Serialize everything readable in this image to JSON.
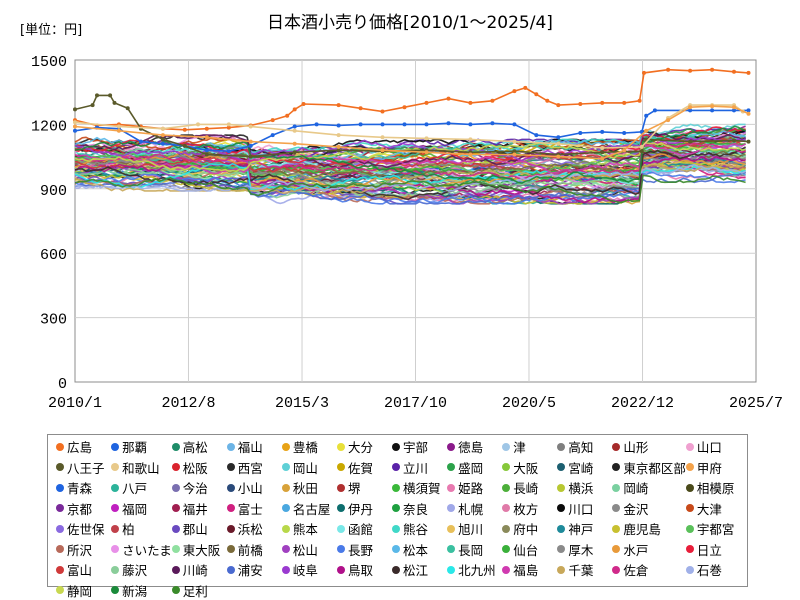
{
  "chart_data": {
    "type": "line",
    "title": "日本酒小売り価格[2010/1～2025/4]",
    "unit_label": "[単位：円]",
    "xlabel": "",
    "ylabel": "",
    "x_range": [
      2010.0,
      2025.5
    ],
    "ylim": [
      0,
      1500
    ],
    "y_ticks": [
      0,
      300,
      600,
      900,
      1200,
      1500
    ],
    "x_ticks": [
      {
        "label": "2010/1",
        "value": 2010.0
      },
      {
        "label": "2012/8",
        "value": 2012.583
      },
      {
        "label": "2015/3",
        "value": 2015.167
      },
      {
        "label": "2017/10",
        "value": 2017.75
      },
      {
        "label": "2020/5",
        "value": 2020.333
      },
      {
        "label": "2022/12",
        "value": 2022.917
      },
      {
        "label": "2025/7",
        "value": 2025.5
      }
    ],
    "grid": true,
    "legend_position": "bottom",
    "highlighted_series": [
      {
        "name": "広島",
        "color": "#f26f21",
        "points": [
          [
            2010.0,
            1220
          ],
          [
            2010.5,
            1195
          ],
          [
            2011.0,
            1200
          ],
          [
            2011.5,
            1190
          ],
          [
            2012.0,
            1180
          ],
          [
            2012.5,
            1175
          ],
          [
            2013.0,
            1180
          ],
          [
            2013.5,
            1185
          ],
          [
            2014.0,
            1195
          ],
          [
            2014.5,
            1220
          ],
          [
            2014.83,
            1240
          ],
          [
            2015.0,
            1270
          ],
          [
            2015.2,
            1295
          ],
          [
            2016.0,
            1290
          ],
          [
            2016.5,
            1275
          ],
          [
            2017.0,
            1260
          ],
          [
            2017.5,
            1280
          ],
          [
            2018.0,
            1300
          ],
          [
            2018.5,
            1320
          ],
          [
            2019.0,
            1300
          ],
          [
            2019.5,
            1310
          ],
          [
            2020.0,
            1355
          ],
          [
            2020.25,
            1370
          ],
          [
            2020.5,
            1340
          ],
          [
            2020.75,
            1310
          ],
          [
            2021.0,
            1290
          ],
          [
            2021.5,
            1295
          ],
          [
            2022.0,
            1300
          ],
          [
            2022.5,
            1300
          ],
          [
            2022.85,
            1310
          ],
          [
            2022.95,
            1440
          ],
          [
            2023.5,
            1455
          ],
          [
            2024.0,
            1450
          ],
          [
            2024.5,
            1455
          ],
          [
            2025.0,
            1445
          ],
          [
            2025.33,
            1440
          ]
        ]
      },
      {
        "name": "那覇",
        "color": "#1f64e0",
        "points": [
          [
            2010.0,
            1170
          ],
          [
            2010.5,
            1185
          ],
          [
            2011.0,
            1180
          ],
          [
            2011.5,
            1120
          ],
          [
            2012.0,
            1110
          ],
          [
            2012.5,
            1100
          ],
          [
            2013.0,
            1080
          ],
          [
            2013.5,
            1075
          ],
          [
            2014.0,
            1100
          ],
          [
            2014.5,
            1150
          ],
          [
            2015.0,
            1190
          ],
          [
            2015.5,
            1200
          ],
          [
            2016.0,
            1195
          ],
          [
            2016.5,
            1200
          ],
          [
            2017.0,
            1200
          ],
          [
            2017.5,
            1200
          ],
          [
            2018.0,
            1200
          ],
          [
            2018.5,
            1205
          ],
          [
            2019.0,
            1200
          ],
          [
            2019.5,
            1205
          ],
          [
            2020.0,
            1200
          ],
          [
            2020.5,
            1150
          ],
          [
            2021.0,
            1140
          ],
          [
            2021.5,
            1160
          ],
          [
            2022.0,
            1165
          ],
          [
            2022.5,
            1160
          ],
          [
            2022.9,
            1165
          ],
          [
            2023.0,
            1240
          ],
          [
            2023.2,
            1265
          ],
          [
            2024.0,
            1265
          ],
          [
            2024.5,
            1265
          ],
          [
            2025.0,
            1265
          ],
          [
            2025.33,
            1265
          ]
        ]
      },
      {
        "name": "八王子",
        "color": "#5a5a2a",
        "points": [
          [
            2010.0,
            1270
          ],
          [
            2010.4,
            1290
          ],
          [
            2010.5,
            1335
          ],
          [
            2010.8,
            1335
          ],
          [
            2010.9,
            1300
          ],
          [
            2011.2,
            1275
          ],
          [
            2011.5,
            1180
          ],
          [
            2012.0,
            1130
          ],
          [
            2012.5,
            1100
          ],
          [
            2013.0,
            1060
          ],
          [
            2014.0,
            1050
          ],
          [
            2015.0,
            1070
          ],
          [
            2016.0,
            1080
          ],
          [
            2017.0,
            1075
          ],
          [
            2018.0,
            1080
          ],
          [
            2019.0,
            1070
          ],
          [
            2020.0,
            1075
          ],
          [
            2021.0,
            1060
          ],
          [
            2022.0,
            1070
          ],
          [
            2022.9,
            1075
          ],
          [
            2023.0,
            1130
          ],
          [
            2024.0,
            1120
          ],
          [
            2025.0,
            1125
          ],
          [
            2025.33,
            1120
          ]
        ]
      },
      {
        "name": "和歌山",
        "color": "#e8c98a",
        "points": [
          [
            2010.0,
            1210
          ],
          [
            2011.0,
            1190
          ],
          [
            2012.0,
            1180
          ],
          [
            2012.8,
            1200
          ],
          [
            2013.5,
            1200
          ],
          [
            2014.0,
            1190
          ],
          [
            2015.0,
            1170
          ],
          [
            2016.0,
            1150
          ],
          [
            2017.0,
            1140
          ],
          [
            2018.0,
            1135
          ],
          [
            2019.0,
            1130
          ],
          [
            2020.0,
            1120
          ],
          [
            2021.0,
            1110
          ],
          [
            2022.0,
            1090
          ],
          [
            2022.9,
            1095
          ],
          [
            2023.5,
            1230
          ],
          [
            2024.0,
            1290
          ],
          [
            2024.5,
            1290
          ],
          [
            2025.0,
            1290
          ],
          [
            2025.2,
            1260
          ]
        ]
      },
      {
        "name": "甲府",
        "color": "#f4a24a",
        "points": [
          [
            2010.0,
            1190
          ],
          [
            2011.0,
            1170
          ],
          [
            2012.0,
            1150
          ],
          [
            2013.0,
            1140
          ],
          [
            2014.0,
            1120
          ],
          [
            2015.0,
            1110
          ],
          [
            2016.0,
            1095
          ],
          [
            2017.0,
            1080
          ],
          [
            2018.0,
            1070
          ],
          [
            2019.0,
            1060
          ],
          [
            2020.0,
            1060
          ],
          [
            2021.0,
            1050
          ],
          [
            2022.0,
            1040
          ],
          [
            2022.5,
            1080
          ],
          [
            2023.0,
            1170
          ],
          [
            2023.5,
            1220
          ],
          [
            2024.0,
            1280
          ],
          [
            2024.5,
            1285
          ],
          [
            2025.0,
            1280
          ],
          [
            2025.33,
            1250
          ]
        ]
      }
    ],
    "band": {
      "note": "Remaining series form a dense band between roughly 830 and 1150 yen",
      "eras": [
        {
          "start": 2010.0,
          "end": 2014.0,
          "min": 890,
          "max": 1150
        },
        {
          "start": 2014.0,
          "end": 2022.9,
          "min": 830,
          "max": 1130
        },
        {
          "start": 2022.9,
          "end": 2025.33,
          "min": 930,
          "max": 1200
        }
      ]
    },
    "legend": [
      {
        "name": "広島",
        "color": "#f26f21"
      },
      {
        "name": "那覇",
        "color": "#1f64e0"
      },
      {
        "name": "高松",
        "color": "#1e8c68"
      },
      {
        "name": "福山",
        "color": "#6cb4e6"
      },
      {
        "name": "豊橋",
        "color": "#e8a317"
      },
      {
        "name": "大分",
        "color": "#e8e03a"
      },
      {
        "name": "宇部",
        "color": "#111111"
      },
      {
        "name": "徳島",
        "color": "#8b1a8b"
      },
      {
        "name": "津",
        "color": "#9fc6e6"
      },
      {
        "name": "高知",
        "color": "#7f7f7f"
      },
      {
        "name": "山形",
        "color": "#a52a2a"
      },
      {
        "name": "山口",
        "color": "#f0a0d0"
      },
      {
        "name": "八王子",
        "color": "#5a5a2a"
      },
      {
        "name": "和歌山",
        "color": "#e8c98a"
      },
      {
        "name": "松阪",
        "color": "#d9232e"
      },
      {
        "name": "西宮",
        "color": "#2a2a2a"
      },
      {
        "name": "岡山",
        "color": "#5fd0d6"
      },
      {
        "name": "佐賀",
        "color": "#c9a800"
      },
      {
        "name": "立川",
        "color": "#5a22a8"
      },
      {
        "name": "盛岡",
        "color": "#2ca24a"
      },
      {
        "name": "大阪",
        "color": "#86c83a"
      },
      {
        "name": "宮崎",
        "color": "#1c5f70"
      },
      {
        "name": "東京都区部",
        "color": "#222222"
      },
      {
        "name": "甲府",
        "color": "#f4a24a"
      },
      {
        "name": "青森",
        "color": "#1f64e0"
      },
      {
        "name": "八戸",
        "color": "#2cb39a"
      },
      {
        "name": "今治",
        "color": "#7a6fb0"
      },
      {
        "name": "小山",
        "color": "#2a4a7a"
      },
      {
        "name": "秋田",
        "color": "#d8a23a"
      },
      {
        "name": "堺",
        "color": "#b03030"
      },
      {
        "name": "横須賀",
        "color": "#3ab83a"
      },
      {
        "name": "姫路",
        "color": "#e87ab0"
      },
      {
        "name": "長崎",
        "color": "#4caf3a"
      },
      {
        "name": "横浜",
        "color": "#b8c832"
      },
      {
        "name": "岡崎",
        "color": "#7ad0a0"
      },
      {
        "name": "相模原",
        "color": "#4a4a1a"
      },
      {
        "name": "京都",
        "color": "#7a2a9a"
      },
      {
        "name": "福岡",
        "color": "#c020c0"
      },
      {
        "name": "福井",
        "color": "#a01e50"
      },
      {
        "name": "富士",
        "color": "#d02080"
      },
      {
        "name": "名古屋",
        "color": "#4aa8e0"
      },
      {
        "name": "伊丹",
        "color": "#0e6e6e"
      },
      {
        "name": "奈良",
        "color": "#1ea040"
      },
      {
        "name": "札幌",
        "color": "#a0a8e8"
      },
      {
        "name": "枚方",
        "color": "#e07aa8"
      },
      {
        "name": "川口",
        "color": "#0a0a0a"
      },
      {
        "name": "金沢",
        "color": "#8a8a8a"
      },
      {
        "name": "大津",
        "color": "#c84a1a"
      },
      {
        "name": "佐世保",
        "color": "#8a6ae0"
      },
      {
        "name": "柏",
        "color": "#c0404a"
      },
      {
        "name": "郡山",
        "color": "#6a4ac0"
      },
      {
        "name": "浜松",
        "color": "#6a1a2a"
      },
      {
        "name": "熊本",
        "color": "#b8d84a"
      },
      {
        "name": "函館",
        "color": "#7ae8e8"
      },
      {
        "name": "熊谷",
        "color": "#40d8c8"
      },
      {
        "name": "旭川",
        "color": "#e8c05a"
      },
      {
        "name": "府中",
        "color": "#8a8a5a"
      },
      {
        "name": "神戸",
        "color": "#1e8a9a"
      },
      {
        "name": "鹿児島",
        "color": "#c8c030"
      },
      {
        "name": "宇都宮",
        "color": "#5ac05a"
      },
      {
        "name": "所沢",
        "color": "#b86a5a"
      },
      {
        "name": "さいたま",
        "color": "#e890e8"
      },
      {
        "name": "東大阪",
        "color": "#90e0a0"
      },
      {
        "name": "前橋",
        "color": "#7a6a3a"
      },
      {
        "name": "松山",
        "color": "#a040c0"
      },
      {
        "name": "長野",
        "color": "#4a7ae8"
      },
      {
        "name": "松本",
        "color": "#5ab8e8"
      },
      {
        "name": "長岡",
        "color": "#3ac0a0"
      },
      {
        "name": "仙台",
        "color": "#3ab03a"
      },
      {
        "name": "厚木",
        "color": "#8a8a8a"
      },
      {
        "name": "水戸",
        "color": "#e89a3a"
      },
      {
        "name": "日立",
        "color": "#e81e3a"
      },
      {
        "name": "富山",
        "color": "#d03a3a"
      },
      {
        "name": "藤沢",
        "color": "#8acd9a"
      },
      {
        "name": "川崎",
        "color": "#5a1a5a"
      },
      {
        "name": "浦安",
        "color": "#4a6ad0"
      },
      {
        "name": "岐阜",
        "color": "#9a3ad0"
      },
      {
        "name": "鳥取",
        "color": "#b0108a"
      },
      {
        "name": "松江",
        "color": "#3a2a2a"
      },
      {
        "name": "北九州",
        "color": "#2ae8e8"
      },
      {
        "name": "福島",
        "color": "#d03ab0"
      },
      {
        "name": "千葉",
        "color": "#c8a85a"
      },
      {
        "name": "佐倉",
        "color": "#d02a8a"
      },
      {
        "name": "石巻",
        "color": "#a0b0e8"
      },
      {
        "name": "静岡",
        "color": "#c8d850"
      },
      {
        "name": "新潟",
        "color": "#1a8a3a"
      },
      {
        "name": "足利",
        "color": "#3a8a2a"
      }
    ]
  }
}
